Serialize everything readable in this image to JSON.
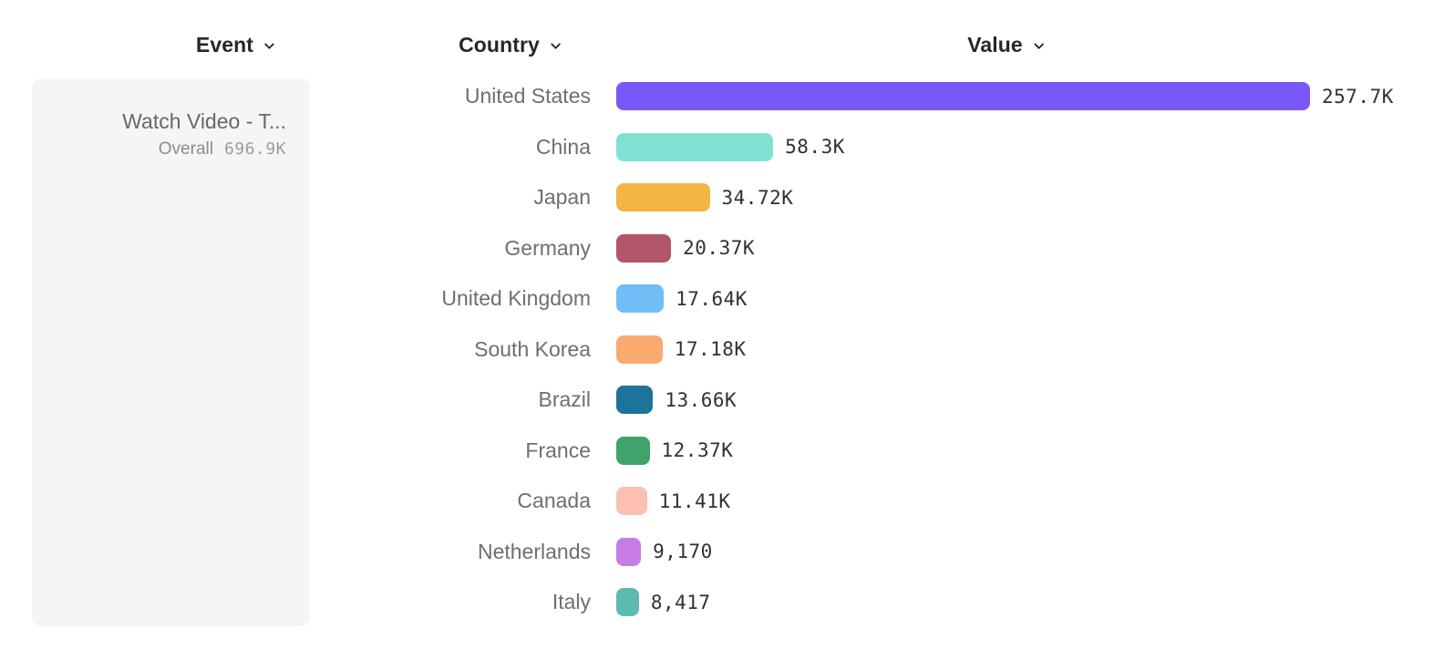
{
  "header": {
    "columns": [
      {
        "id": "event",
        "label": "Event"
      },
      {
        "id": "country",
        "label": "Country"
      },
      {
        "id": "value",
        "label": "Value"
      }
    ],
    "dropdown_icon": "chevron-down-icon",
    "text_color": "#26262c"
  },
  "event_panel": {
    "event_name": "Watch Video - T...",
    "metric_label": "Overall",
    "metric_value": "696.9K",
    "background": "#f5f5f6"
  },
  "chart_data": {
    "type": "bar",
    "orientation": "horizontal",
    "title": "",
    "xlabel": "Value",
    "ylabel": "Country",
    "xlim": [
      0,
      257700
    ],
    "grid": false,
    "legend": false,
    "categories": [
      "United States",
      "China",
      "Japan",
      "Germany",
      "United Kingdom",
      "South Korea",
      "Brazil",
      "France",
      "Canada",
      "Netherlands",
      "Italy"
    ],
    "values": [
      257700,
      58300,
      34720,
      20370,
      17640,
      17180,
      13660,
      12370,
      11410,
      9170,
      8417
    ],
    "value_labels": [
      "257.7K",
      "58.3K",
      "34.72K",
      "20.37K",
      "17.64K",
      "17.18K",
      "13.66K",
      "12.37K",
      "11.41K",
      "9,170",
      "8,417"
    ],
    "bar_colors": [
      "#7957fa",
      "#7fe1d2",
      "#f4b542",
      "#b2566b",
      "#70bef4",
      "#faa970",
      "#1d7499",
      "#3ea46c",
      "#fcc0b2",
      "#c67ce2",
      "#5dbab0"
    ],
    "label_color": "#6e6e73",
    "value_text_color": "#303036"
  }
}
